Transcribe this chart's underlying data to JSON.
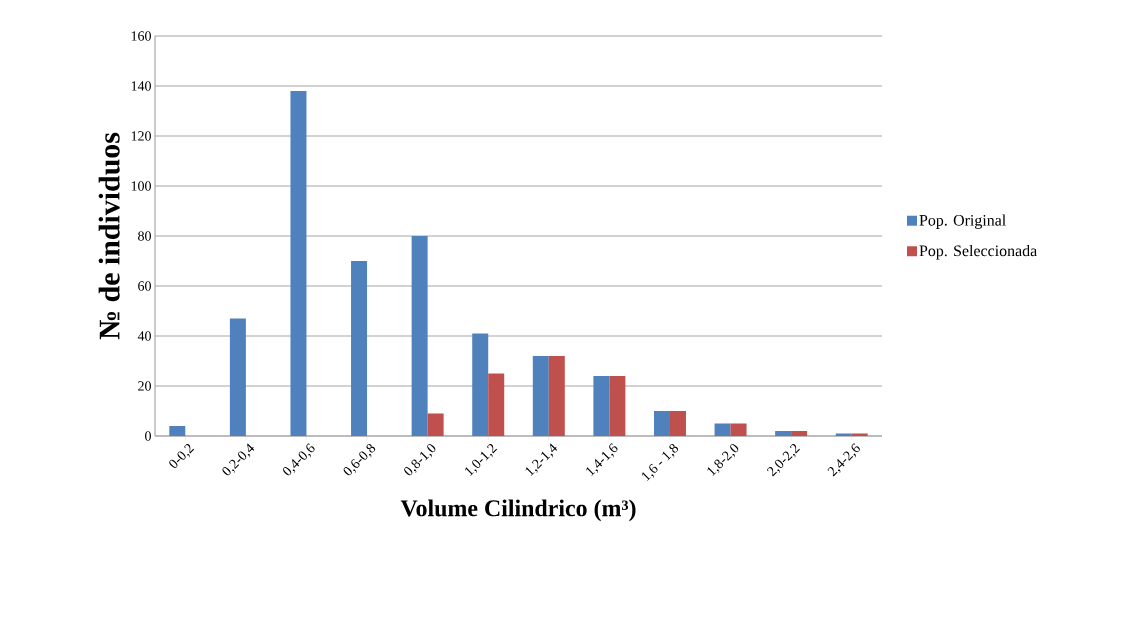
{
  "chart_data": {
    "type": "bar",
    "xlabel": "Volume Cilindrico (m³)",
    "ylabel": "№ de individuos",
    "categories": [
      "0-0,2",
      "0,2-0,4",
      "0,4-0,6",
      "0,6-0,8",
      "0,8-1,0",
      "1,0-1,2",
      "1,2-1,4",
      "1,4-1,6",
      "1,6 - 1,8",
      "1,8-2,0",
      "2,0-2,2",
      "2,4-2,6"
    ],
    "series": [
      {
        "name": "Pop. Original",
        "color": "#4f81bd",
        "values": [
          4,
          47,
          138,
          70,
          80,
          41,
          32,
          24,
          10,
          5,
          2,
          1
        ]
      },
      {
        "name": "Pop. Seleccionada",
        "color": "#c0504d",
        "values": [
          null,
          null,
          null,
          null,
          9,
          25,
          32,
          24,
          10,
          5,
          2,
          1
        ]
      }
    ],
    "ylim": [
      0,
      160
    ],
    "yticks": [
      0,
      20,
      40,
      60,
      80,
      100,
      120,
      140,
      160
    ],
    "grid": "y",
    "legend": "right"
  }
}
